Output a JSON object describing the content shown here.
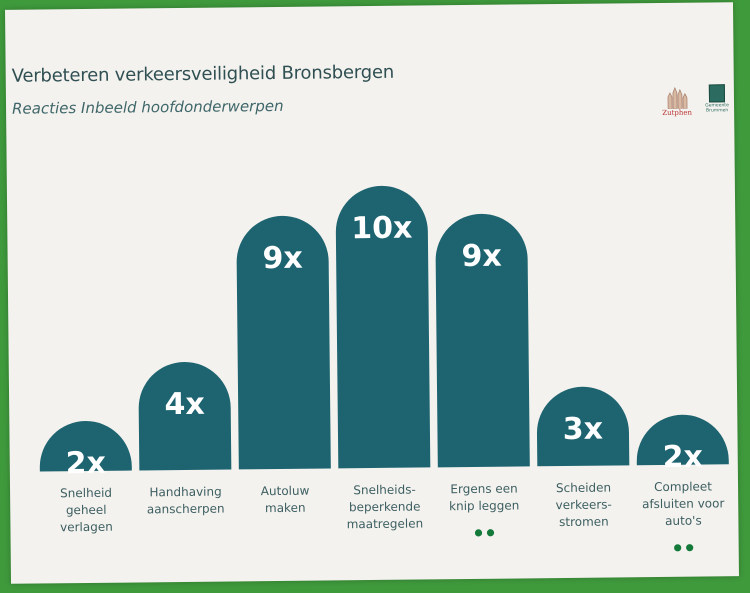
{
  "header": {
    "title": "Verbeteren verkeersveiligheid Bronsbergen",
    "subtitle": "Reacties Inbeeld hoofdonderwerpen"
  },
  "logos": {
    "zutphen": "Zutphen",
    "brummen": "Gemeente Brummen"
  },
  "chart_data": {
    "type": "bar",
    "title": "Verbeteren verkeersveiligheid Bronsbergen",
    "subtitle": "Reacties Inbeeld hoofdonderwerpen",
    "categories": [
      "Snelheid geheel verlagen",
      "Handhaving aanscherpen",
      "Autoluw maken",
      "Snelheids-beperkende maatregelen",
      "Ergens een knip leggen",
      "Scheiden verkeers-stromen",
      "Compleet afsluiten voor auto's"
    ],
    "category_lines": [
      [
        "Snelheid",
        "geheel",
        "verlagen"
      ],
      [
        "Handhaving",
        "aanscherpen"
      ],
      [
        "Autoluw",
        "maken"
      ],
      [
        "Snelheids-",
        "beperkende",
        "maatregelen"
      ],
      [
        "Ergens een",
        "knip leggen"
      ],
      [
        "Scheiden",
        "verkeers-",
        "stromen"
      ],
      [
        "Compleet",
        "afsluiten voor",
        "auto's"
      ]
    ],
    "values": [
      2,
      4,
      9,
      10,
      9,
      3,
      2
    ],
    "value_labels": [
      "2x",
      "4x",
      "9x",
      "10x",
      "9x",
      "3x",
      "2x"
    ],
    "dots_under": [
      0,
      0,
      0,
      0,
      2,
      0,
      2
    ],
    "ylim": [
      0,
      10
    ],
    "grid": false,
    "bar_color": "#1e6470"
  }
}
